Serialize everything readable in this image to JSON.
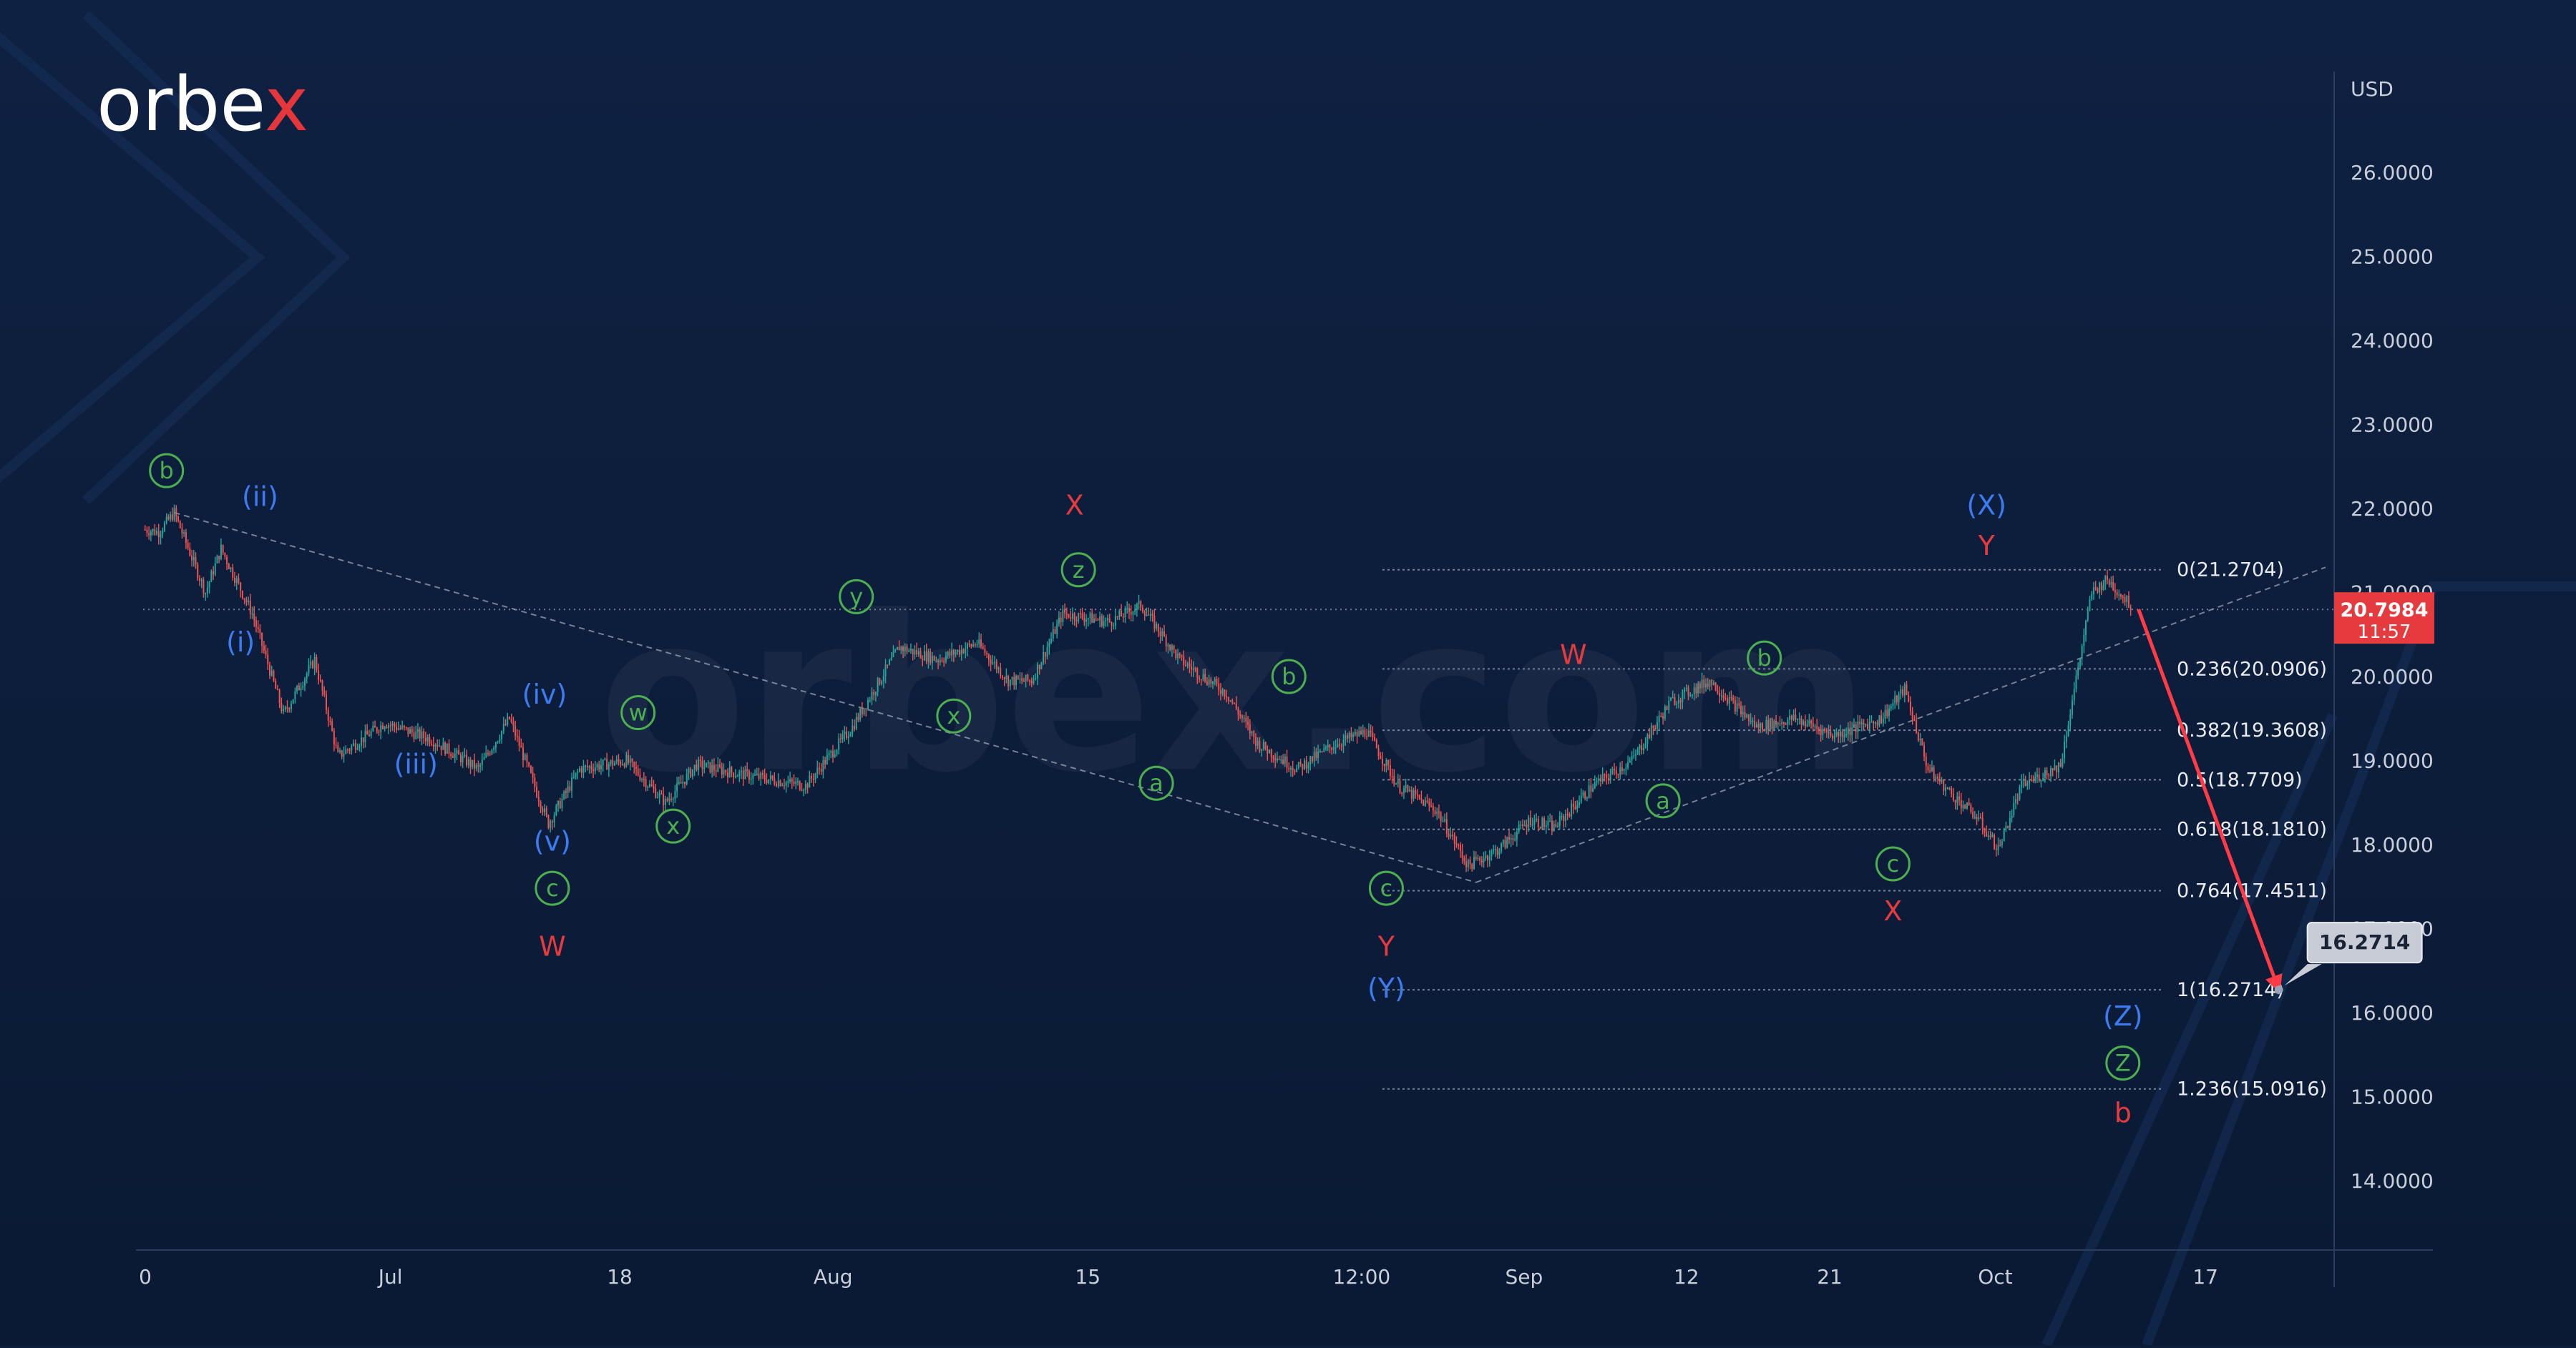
{
  "brand": {
    "name": "orbex",
    "watermark": "orbex.com",
    "accent": "#e5363b"
  },
  "colors": {
    "background": "#0c1d3a",
    "candle_up": "#26a69a",
    "candle_down": "#ef5350",
    "blue_wave": "#3d7cf0",
    "green_wave": "#4caf50",
    "red_wave": "#e53b3e",
    "arrow": "#ff3b45"
  },
  "chart_data": {
    "type": "candlestick",
    "currency_label": "USD",
    "ylim": [
      13.2,
      27.2
    ],
    "y_ticks": [
      "14.0000",
      "15.0000",
      "16.0000",
      "17.0000",
      "18.0000",
      "19.0000",
      "20.0000",
      "21.0000",
      "22.0000",
      "23.0000",
      "24.0000",
      "25.0000",
      "26.0000"
    ],
    "x_ticks": [
      "0",
      "Jul",
      "18",
      "Aug",
      "15",
      "12:00",
      "Sep",
      "12",
      "21",
      "Oct",
      "17"
    ],
    "current_price": {
      "value": "20.7984",
      "time": "11:57"
    },
    "target_callout": "16.2714",
    "fib_levels": [
      {
        "label": "0(21.2704)",
        "value": 21.2704
      },
      {
        "label": "0.236(20.0906)",
        "value": 20.0906
      },
      {
        "label": "0.382(19.3608)",
        "value": 19.3608
      },
      {
        "label": "0.5(18.7709)",
        "value": 18.7709
      },
      {
        "label": "0.618(18.1810)",
        "value": 18.181
      },
      {
        "label": "0.764(17.4511)",
        "value": 17.4511
      },
      {
        "label": "1(16.2714)",
        "value": 16.2714
      },
      {
        "label": "1.236(15.0916)",
        "value": 15.0916
      }
    ],
    "price_path": [
      [
        0,
        21.75
      ],
      [
        4,
        21.72
      ],
      [
        8,
        21.95
      ],
      [
        16,
        21.0
      ],
      [
        20,
        21.52
      ],
      [
        28,
        20.75
      ],
      [
        36,
        19.55
      ],
      [
        44,
        20.2
      ],
      [
        50,
        19.05
      ],
      [
        62,
        19.45
      ],
      [
        74,
        19.25
      ],
      [
        86,
        18.9
      ],
      [
        94,
        19.5
      ],
      [
        104,
        18.25
      ],
      [
        112,
        18.9
      ],
      [
        124,
        19.0
      ],
      [
        134,
        18.5
      ],
      [
        142,
        18.95
      ],
      [
        152,
        18.85
      ],
      [
        158,
        18.8
      ],
      [
        170,
        18.7
      ],
      [
        182,
        19.4
      ],
      [
        194,
        20.35
      ],
      [
        204,
        20.2
      ],
      [
        214,
        20.4
      ],
      [
        222,
        19.95
      ],
      [
        228,
        19.95
      ],
      [
        236,
        20.75
      ],
      [
        248,
        20.65
      ],
      [
        256,
        20.85
      ],
      [
        266,
        20.2
      ],
      [
        278,
        19.8
      ],
      [
        286,
        19.2
      ],
      [
        296,
        18.9
      ],
      [
        306,
        19.2
      ],
      [
        314,
        19.35
      ],
      [
        322,
        18.7
      ],
      [
        332,
        18.4
      ],
      [
        340,
        17.75
      ],
      [
        348,
        17.95
      ],
      [
        356,
        18.3
      ],
      [
        362,
        18.2
      ],
      [
        372,
        18.7
      ],
      [
        382,
        19.0
      ],
      [
        392,
        19.7
      ],
      [
        402,
        19.95
      ],
      [
        414,
        19.4
      ],
      [
        424,
        19.5
      ],
      [
        434,
        19.3
      ],
      [
        446,
        19.5
      ],
      [
        452,
        19.85
      ],
      [
        458,
        18.9
      ],
      [
        464,
        18.6
      ],
      [
        470,
        18.35
      ],
      [
        476,
        17.95
      ],
      [
        482,
        18.7
      ],
      [
        492,
        18.95
      ],
      [
        500,
        21.0
      ],
      [
        504,
        21.15
      ],
      [
        510,
        20.85
      ]
    ],
    "trendlines": [
      {
        "from": [
          8,
          21.95
        ],
        "to": [
          342,
          17.55
        ]
      },
      {
        "from": [
          342,
          17.55
        ],
        "to": [
          560,
          21.3
        ]
      }
    ],
    "projection_arrow": {
      "from": [
        512,
        20.8
      ],
      "to": [
        548,
        16.2714
      ]
    },
    "wave_labels": [
      {
        "text": "b",
        "x": 6,
        "y": 22.45,
        "style": "green-circle"
      },
      {
        "text": "(ii)",
        "x": 30,
        "y": 22.13,
        "style": "blue"
      },
      {
        "text": "(i)",
        "x": 25,
        "y": 20.4,
        "style": "blue"
      },
      {
        "text": "(iii)",
        "x": 70,
        "y": 18.95,
        "style": "blue"
      },
      {
        "text": "(iv)",
        "x": 103,
        "y": 19.78,
        "style": "blue"
      },
      {
        "text": "(v)",
        "x": 105,
        "y": 18.03,
        "style": "blue"
      },
      {
        "text": "c",
        "x": 105,
        "y": 17.48,
        "style": "green-circle"
      },
      {
        "text": "W",
        "x": 105,
        "y": 16.78,
        "style": "red"
      },
      {
        "text": "w",
        "x": 127,
        "y": 19.57,
        "style": "green-circle"
      },
      {
        "text": "x",
        "x": 136,
        "y": 18.22,
        "style": "green-circle"
      },
      {
        "text": "y",
        "x": 183,
        "y": 20.95,
        "style": "green-circle"
      },
      {
        "text": "x",
        "x": 208,
        "y": 19.53,
        "style": "green-circle"
      },
      {
        "text": "X",
        "x": 239,
        "y": 22.03,
        "style": "red"
      },
      {
        "text": "z",
        "x": 240,
        "y": 21.27,
        "style": "green-circle"
      },
      {
        "text": "b",
        "x": 294,
        "y": 20.0,
        "style": "green-circle"
      },
      {
        "text": "a",
        "x": 260,
        "y": 18.73,
        "style": "green-circle"
      },
      {
        "text": "c",
        "x": 319,
        "y": 17.48,
        "style": "green-circle"
      },
      {
        "text": "Y",
        "x": 319,
        "y": 16.78,
        "style": "red"
      },
      {
        "text": "(Y)",
        "x": 319,
        "y": 16.28,
        "style": "blue"
      },
      {
        "text": "W",
        "x": 367,
        "y": 20.25,
        "style": "red"
      },
      {
        "text": "a",
        "x": 390,
        "y": 18.52,
        "style": "green-circle"
      },
      {
        "text": "b",
        "x": 416,
        "y": 20.22,
        "style": "green-circle"
      },
      {
        "text": "c",
        "x": 449,
        "y": 17.77,
        "style": "green-circle"
      },
      {
        "text": "X",
        "x": 449,
        "y": 17.2,
        "style": "red"
      },
      {
        "text": "(X)",
        "x": 473,
        "y": 22.03,
        "style": "blue"
      },
      {
        "text": "Y",
        "x": 473,
        "y": 21.55,
        "style": "red"
      },
      {
        "text": "(Z)",
        "x": 508,
        "y": 15.95,
        "style": "blue"
      },
      {
        "text": "Z",
        "x": 508,
        "y": 15.4,
        "style": "green-circle"
      },
      {
        "text": "b",
        "x": 508,
        "y": 14.8,
        "style": "red"
      }
    ]
  }
}
